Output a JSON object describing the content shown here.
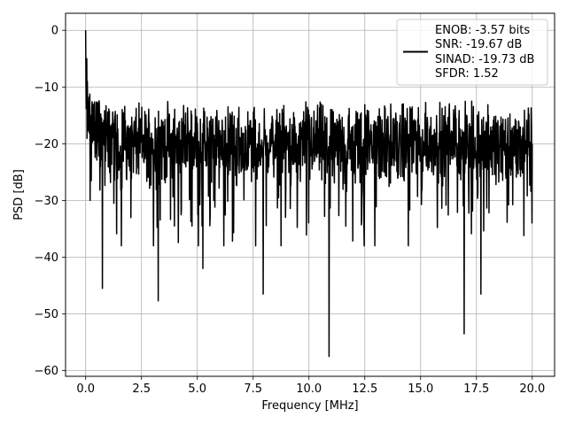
{
  "chart_data": {
    "type": "line",
    "xlabel": "Frequency [MHz]",
    "ylabel": "PSD [dB]",
    "xlim": [
      -0.9,
      21.0
    ],
    "ylim": [
      -61.0,
      3.0
    ],
    "x_ticks": [
      0.0,
      2.5,
      5.0,
      7.5,
      10.0,
      12.5,
      15.0,
      17.5,
      20.0
    ],
    "x_tick_labels": [
      "0.0",
      "2.5",
      "5.0",
      "7.5",
      "10.0",
      "12.5",
      "15.0",
      "17.5",
      "20.0"
    ],
    "y_ticks": [
      0,
      -10,
      -20,
      -30,
      -40,
      -50,
      -60
    ],
    "y_tick_labels": [
      "0",
      "−10",
      "−20",
      "−30",
      "−40",
      "−50",
      "−60"
    ],
    "grid": true,
    "legend_position": "top-right",
    "legend_entries": [
      "ENOB: -3.57 bits",
      "SNR: -19.67 dB",
      "SINAD: -19.73 dB",
      "SFDR: 1.52"
    ],
    "series_color": "#000000",
    "series": [
      {
        "x_range": [
          0,
          20
        ],
        "noise_floor_db": -20,
        "min_db": -57.5,
        "max_db": 0.0,
        "notable_points": [
          {
            "x": 0.0,
            "y": 0.0
          },
          {
            "x": 0.05,
            "y": -5.0
          },
          {
            "x": 0.2,
            "y": -30.0
          },
          {
            "x": 0.75,
            "y": -45.5
          },
          {
            "x": 3.25,
            "y": -47.7
          },
          {
            "x": 5.25,
            "y": -42.0
          },
          {
            "x": 7.95,
            "y": -46.5
          },
          {
            "x": 10.9,
            "y": -57.5
          },
          {
            "x": 16.95,
            "y": -53.5
          },
          {
            "x": 17.7,
            "y": -46.5
          }
        ]
      }
    ]
  }
}
